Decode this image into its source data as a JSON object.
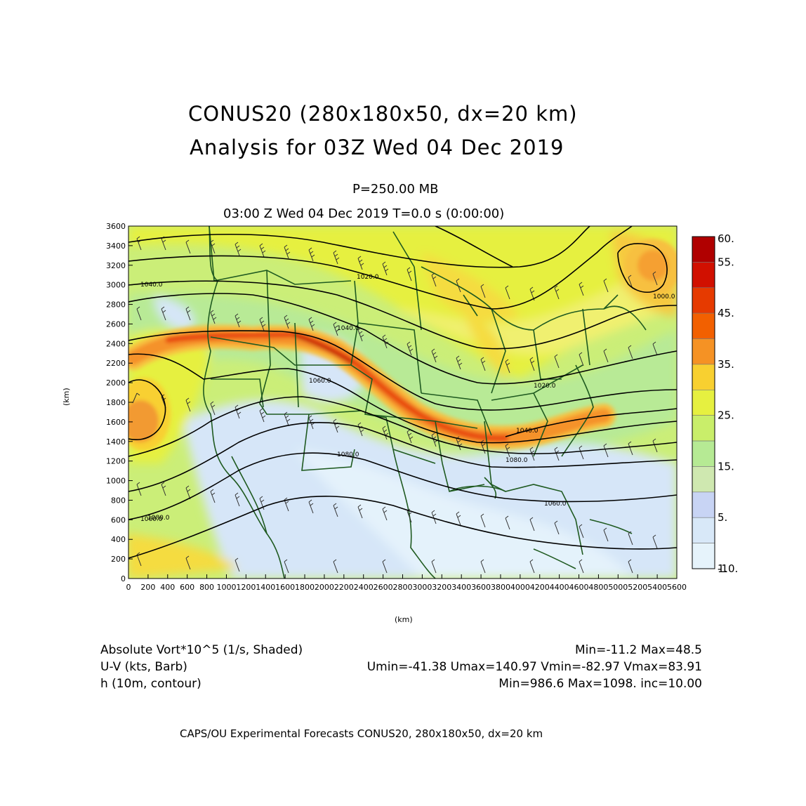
{
  "title": {
    "line1": "CONUS20 (280x180x50, dx=20 km)",
    "line2": "Analysis for 03Z Wed 04 Dec 2019"
  },
  "level": "P=250.00 MB",
  "time_line": "03:00 Z Wed 04 Dec 2019    T=0.0 s (0:00:00)",
  "axes": {
    "x_label": "(km)",
    "y_label": "(km)",
    "x_ticks": [
      "0",
      "200",
      "400",
      "600",
      "800",
      "1000",
      "1200",
      "1400",
      "1600",
      "1800",
      "2000",
      "2200",
      "2400",
      "2600",
      "2800",
      "3000",
      "3200",
      "3400",
      "3600",
      "3800",
      "4000",
      "4200",
      "4400",
      "4600",
      "4800",
      "5000",
      "5200",
      "5400",
      "5600"
    ],
    "y_ticks": [
      "0",
      "200",
      "400",
      "600",
      "800",
      "1000",
      "1200",
      "1400",
      "1600",
      "1800",
      "2000",
      "2200",
      "2400",
      "2600",
      "2800",
      "3000",
      "3200",
      "3400",
      "3600"
    ]
  },
  "colorbar": {
    "labels": [
      "60.",
      "55.",
      "45.",
      "35.",
      "25.",
      "15.",
      "5.",
      "1.",
      "-10."
    ],
    "colors": [
      "#b00000",
      "#d11000",
      "#e63a00",
      "#f26000",
      "#f59224",
      "#f8d030",
      "#e6f040",
      "#c9ee6a",
      "#b6ea94",
      "#cfe8b0",
      "#c8d4f4",
      "#d8e8f8",
      "#e6f3fb"
    ]
  },
  "contour_labels": [
    "1040.0",
    "1020.0",
    "1040.0",
    "1060.0",
    "1080.0",
    "1060.0",
    "1080.0",
    "1020.0",
    "1040.0",
    "1060.0",
    "1080.0",
    "1000.0"
  ],
  "info": {
    "var1_name": "Absolute Vort*10^5 (1/s, Shaded)",
    "var1_stats": "Min=-11.2 Max=48.5",
    "var2_name": "U-V (kts, Barb)",
    "var2_stats": "Umin=-41.38 Umax=140.97 Vmin=-82.97 Vmax=83.91",
    "var3_name": "h (10m, contour)",
    "var3_stats": "Min=986.6 Max=1098. inc=10.00"
  },
  "footer": "CAPS/OU Experimental Forecasts   CONUS20, 280x180x50, dx=20 km"
}
